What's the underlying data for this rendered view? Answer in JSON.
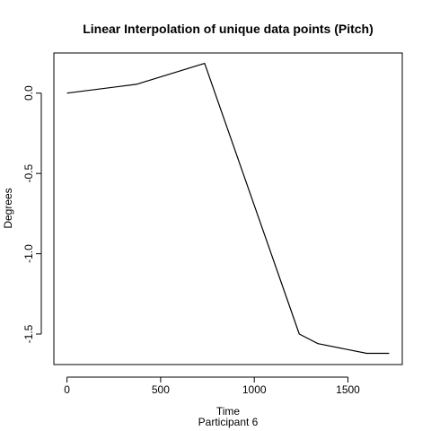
{
  "chart_data": {
    "type": "line",
    "title": "Linear Interpolation of unique data points (Pitch)",
    "xlabel": "Time",
    "sublabel": "Participant  6",
    "ylabel": "Degrees",
    "xlim": [
      -70,
      1790
    ],
    "ylim": [
      -1.69,
      0.25
    ],
    "x_ticks": [
      0,
      500,
      1000,
      1500
    ],
    "y_ticks": [
      0.0,
      -0.5,
      -1.0,
      -1.5
    ],
    "x_tick_labels": [
      "0",
      "500",
      "1000",
      "1500"
    ],
    "y_tick_labels": [
      "0.0",
      "-0.5",
      "-1.0",
      "-1.5"
    ],
    "grid": false,
    "line_color": "#000000",
    "series": [
      {
        "x": [
          0,
          370,
          735,
          1240,
          1340,
          1600,
          1720
        ],
        "y": [
          0.0,
          0.055,
          0.185,
          -1.5,
          -1.56,
          -1.62,
          -1.62
        ]
      }
    ]
  }
}
